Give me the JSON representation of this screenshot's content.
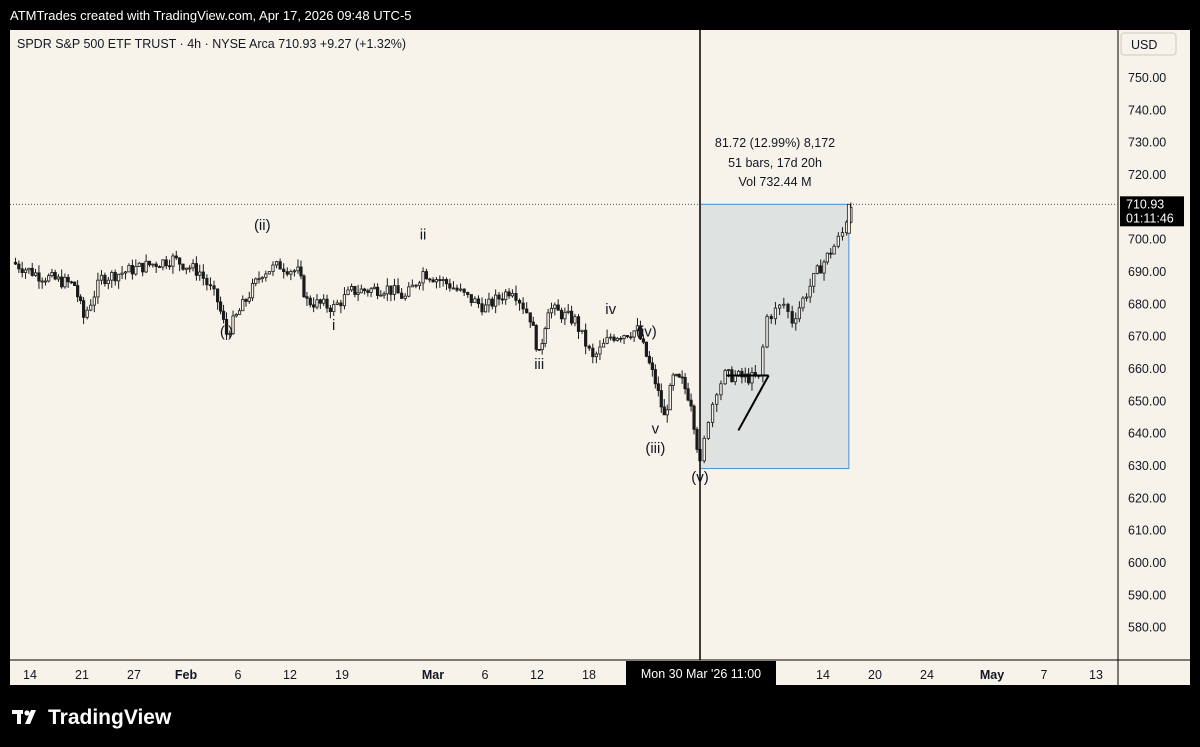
{
  "header": {
    "caption": "ATMTrades created with TradingView.com, Apr 17, 2026 09:48 UTC-5"
  },
  "symbol_line": "SPDR S&P 500 ETF TRUST · 4h · NYSE Arca  710.93  +9.27 (+1.32%)",
  "currency": "USD",
  "price_tag": {
    "price": "710.93",
    "countdown": "01:11:46"
  },
  "crosshair_label": "Mon 30 Mar '26   11:00",
  "measure": {
    "line1": "81.72 (12.99%) 8,172",
    "line2": "51 bars, 17d 20h",
    "line3": "Vol 732.44 M"
  },
  "footer": {
    "brand": "TradingView",
    "logo_icon": "tradingview-logo-icon"
  },
  "colors": {
    "background": "#f7f3ea",
    "candle": "#1a1a1a",
    "measure_fill": "#d7dedf",
    "measure_border": "#4a8fd8"
  },
  "chart_data": {
    "type": "candlestick",
    "series_name": "SPDR S&P 500 ETF TRUST",
    "interval": "4h",
    "ylim": [
      570,
      760
    ],
    "y_ticks": [
      "750.00",
      "740.00",
      "730.00",
      "720.00",
      "710.00",
      "700.00",
      "690.00",
      "680.00",
      "670.00",
      "660.00",
      "650.00",
      "640.00",
      "630.00",
      "620.00",
      "610.00",
      "600.00",
      "590.00",
      "580.00"
    ],
    "x_ticks": [
      "14",
      "21",
      "27",
      "Feb",
      "6",
      "12",
      "19",
      "Mar",
      "6",
      "12",
      "18",
      "14",
      "20",
      "24",
      "May",
      "7",
      "13"
    ],
    "price_path": [
      {
        "date": "2026-01-12",
        "close": 693
      },
      {
        "date": "2026-01-15",
        "close": 689
      },
      {
        "date": "2026-01-19",
        "close": 686
      },
      {
        "date": "2026-01-20",
        "close": 676
      },
      {
        "date": "2026-01-22",
        "close": 688
      },
      {
        "date": "2026-01-27",
        "close": 692
      },
      {
        "date": "2026-01-30",
        "close": 694
      },
      {
        "date": "2026-02-02",
        "close": 690
      },
      {
        "date": "2026-02-04",
        "close": 681
      },
      {
        "date": "2026-02-05",
        "close": 671
      },
      {
        "date": "2026-02-09",
        "close": 690
      },
      {
        "date": "2026-02-11",
        "close": 692
      },
      {
        "date": "2026-02-13",
        "close": 690
      },
      {
        "date": "2026-02-14",
        "close": 681
      },
      {
        "date": "2026-02-17",
        "close": 679
      },
      {
        "date": "2026-02-19",
        "close": 684
      },
      {
        "date": "2026-02-23",
        "close": 685
      },
      {
        "date": "2026-02-25",
        "close": 682
      },
      {
        "date": "2026-02-27",
        "close": 690
      },
      {
        "date": "2026-03-02",
        "close": 686
      },
      {
        "date": "2026-03-04",
        "close": 682
      },
      {
        "date": "2026-03-06",
        "close": 679
      },
      {
        "date": "2026-03-09",
        "close": 685
      },
      {
        "date": "2026-03-11",
        "close": 676
      },
      {
        "date": "2026-03-12",
        "close": 664
      },
      {
        "date": "2026-03-13",
        "close": 679
      },
      {
        "date": "2026-03-16",
        "close": 675
      },
      {
        "date": "2026-03-18",
        "close": 663
      },
      {
        "date": "2026-03-20",
        "close": 670
      },
      {
        "date": "2026-03-23",
        "close": 672
      },
      {
        "date": "2026-03-24",
        "close": 664
      },
      {
        "date": "2026-03-25",
        "close": 656
      },
      {
        "date": "2026-03-26",
        "close": 645
      },
      {
        "date": "2026-03-27",
        "close": 657
      },
      {
        "date": "2026-03-28",
        "close": 656
      },
      {
        "date": "2026-03-29",
        "close": 650
      },
      {
        "date": "2026-03-30",
        "close": 630
      },
      {
        "date": "2026-03-31",
        "close": 645
      },
      {
        "date": "2026-04-01",
        "close": 654
      },
      {
        "date": "2026-04-02",
        "close": 658
      },
      {
        "date": "2026-04-06",
        "close": 657
      },
      {
        "date": "2026-04-07",
        "close": 676
      },
      {
        "date": "2026-04-08",
        "close": 678
      },
      {
        "date": "2026-04-09",
        "close": 680
      },
      {
        "date": "2026-04-10",
        "close": 675
      },
      {
        "date": "2026-04-13",
        "close": 690
      },
      {
        "date": "2026-04-15",
        "close": 698
      },
      {
        "date": "2026-04-16",
        "close": 702
      },
      {
        "date": "2026-04-17",
        "close": 710.93
      }
    ],
    "current_price": 710.93,
    "wave_labels": [
      {
        "text": "(i)",
        "date": "2026-02-05",
        "price": 670
      },
      {
        "text": "(ii)",
        "date": "2026-02-09",
        "price": 703
      },
      {
        "text": "i",
        "date": "2026-02-17",
        "price": 672
      },
      {
        "text": "ii",
        "date": "2026-02-27",
        "price": 700
      },
      {
        "text": "iii",
        "date": "2026-03-12",
        "price": 660
      },
      {
        "text": "iv",
        "date": "2026-03-20",
        "price": 677
      },
      {
        "text": "(iv)",
        "date": "2026-03-24",
        "price": 670
      },
      {
        "text": "v",
        "date": "2026-03-25",
        "price": 640
      },
      {
        "text": "(iii)",
        "date": "2026-03-25",
        "price": 634
      },
      {
        "text": "(v)",
        "date": "2026-03-30",
        "price": 625
      }
    ],
    "measure_range": {
      "from_date": "2026-03-30",
      "to_date": "2026-04-17",
      "low": 629.21,
      "high": 710.93
    },
    "triangle": {
      "top_price": 658,
      "start_date": "2026-03-31",
      "end_date": "2026-04-06",
      "low_start": 641
    },
    "crosshair_date": "2026-03-30"
  }
}
